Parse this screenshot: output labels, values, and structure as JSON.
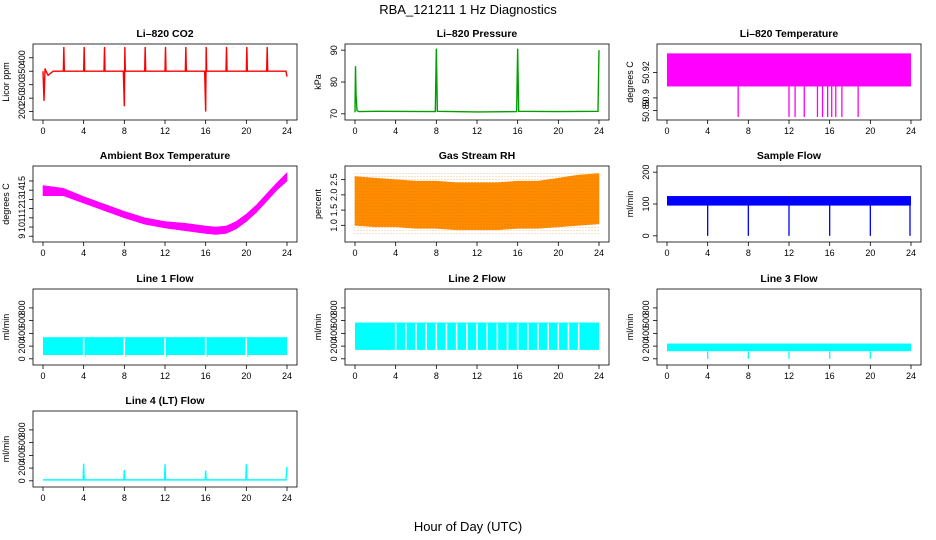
{
  "figure": {
    "title": "RBA_121211  1 Hz Diagnostics",
    "xlabel": "Hour of Day (UTC)"
  },
  "chart_data": [
    {
      "type": "line",
      "title": "Li–820 CO2",
      "ylabel": "Licor ppm",
      "color": "#ff0000",
      "xlim": [
        0,
        24
      ],
      "ylim": [
        180,
        440
      ],
      "xticks": [
        "0",
        "4",
        "8",
        "12",
        "16",
        "20",
        "24"
      ],
      "yticks": [
        "200",
        "250",
        "300",
        "350",
        "400"
      ],
      "series": [
        {
          "x": [
            0,
            0.1,
            0.2,
            0.3,
            0.5,
            1,
            2,
            2.05,
            2.1,
            3,
            4,
            4.05,
            4.1,
            6,
            6.05,
            6.1,
            7.9,
            8,
            8.05,
            8.1,
            10,
            10.05,
            10.1,
            12,
            12.05,
            12.1,
            14,
            14.05,
            14.1,
            15.9,
            16,
            16.05,
            16.1,
            18,
            18.05,
            18.1,
            20,
            20.05,
            20.1,
            22,
            22.05,
            22.1,
            23.9,
            24
          ],
          "y": [
            350,
            240,
            360,
            350,
            335,
            350,
            350,
            440,
            350,
            350,
            350,
            440,
            350,
            350,
            440,
            350,
            350,
            220,
            440,
            350,
            350,
            440,
            350,
            350,
            440,
            350,
            350,
            440,
            350,
            350,
            200,
            440,
            350,
            350,
            440,
            350,
            350,
            440,
            350,
            350,
            440,
            350,
            350,
            330
          ]
        }
      ]
    },
    {
      "type": "line",
      "title": "Li–820 Pressure",
      "ylabel": "kPa",
      "color": "#00a000",
      "xlim": [
        0,
        24
      ],
      "ylim": [
        69,
        91
      ],
      "xticks": [
        "0",
        "4",
        "8",
        "12",
        "16",
        "20",
        "24"
      ],
      "yticks": [
        "70",
        "80",
        "90"
      ],
      "series": [
        {
          "x": [
            0,
            0.05,
            0.1,
            0.2,
            0.4,
            2,
            7.9,
            8,
            8.1,
            12,
            15.9,
            16,
            16.1,
            20,
            23.9,
            24
          ],
          "y": [
            70.5,
            85,
            76,
            71,
            70.7,
            70.8,
            70.7,
            90.5,
            70.8,
            70.6,
            70.7,
            90.5,
            70.8,
            70.7,
            70.8,
            90
          ]
        }
      ]
    },
    {
      "type": "area",
      "title": "Li–820 Temperature",
      "ylabel": "degrees C",
      "color": "#ff00ff",
      "xlim": [
        0,
        24
      ],
      "ylim": [
        50.885,
        50.94
      ],
      "xticks": [
        "0",
        "4",
        "8",
        "12",
        "16",
        "20",
        "24"
      ],
      "yticks": [
        "50.89",
        "50.9",
        "50.92"
      ],
      "series": [
        {
          "band_x": [
            0,
            24
          ],
          "band_low": 50.909,
          "band_high": 50.935,
          "dips_x": [
            7,
            12,
            12.6,
            13.5,
            14.8,
            15.3,
            15.8,
            16.2,
            16.6,
            17.2,
            18.8
          ],
          "dip_low": 50.885
        }
      ]
    },
    {
      "type": "area",
      "title": "Ambient Box Temperature",
      "ylabel": "degrees C",
      "color": "#ff00ff",
      "xlim": [
        0,
        24
      ],
      "ylim": [
        8.7,
        16.3
      ],
      "xticks": [
        "0",
        "4",
        "8",
        "12",
        "16",
        "20",
        "24"
      ],
      "yticks": [
        "9",
        "10",
        "11",
        "12",
        "13",
        "14",
        "15"
      ],
      "series": [
        {
          "x": [
            0,
            2,
            4,
            6,
            8,
            10,
            12,
            14,
            16,
            17,
            18,
            19,
            20,
            21,
            22,
            23,
            24
          ],
          "low": [
            13.4,
            13.4,
            12.6,
            11.8,
            11.0,
            10.3,
            9.9,
            9.6,
            9.3,
            9.2,
            9.3,
            9.8,
            10.6,
            11.6,
            12.8,
            14.0,
            15.0
          ],
          "high": [
            14.5,
            14.2,
            13.3,
            12.5,
            11.7,
            11.0,
            10.6,
            10.4,
            10.1,
            10.0,
            10.1,
            10.6,
            11.4,
            12.4,
            13.6,
            14.8,
            15.9
          ]
        }
      ]
    },
    {
      "type": "area",
      "title": "Gas Stream RH",
      "ylabel": "percent",
      "color": "#ff8c00",
      "xlim": [
        0,
        24
      ],
      "ylim": [
        0.55,
        2.85
      ],
      "xticks": [
        "0",
        "4",
        "8",
        "12",
        "16",
        "20",
        "24"
      ],
      "yticks": [
        "1.0",
        "1.5",
        "2.0",
        "2.5"
      ],
      "series": [
        {
          "x": [
            0,
            2,
            4,
            6,
            8,
            10,
            12,
            14,
            16,
            18,
            20,
            22,
            24
          ],
          "low": [
            1.0,
            0.95,
            0.95,
            0.9,
            0.9,
            0.85,
            0.85,
            0.85,
            0.9,
            0.9,
            0.95,
            1.0,
            1.05
          ],
          "high": [
            2.6,
            2.55,
            2.5,
            2.45,
            2.45,
            2.4,
            2.4,
            2.4,
            2.45,
            2.45,
            2.55,
            2.65,
            2.7
          ]
        }
      ]
    },
    {
      "type": "area",
      "title": "Sample Flow",
      "ylabel": "ml/min",
      "color": "#0000ff",
      "xlim": [
        0,
        24
      ],
      "ylim": [
        -10,
        210
      ],
      "xticks": [
        "0",
        "4",
        "8",
        "12",
        "16",
        "20",
        "24"
      ],
      "yticks": [
        "0",
        "100",
        "200"
      ],
      "series": [
        {
          "band_x": [
            0,
            24
          ],
          "band_low": 95,
          "band_high": 125,
          "dips_x": [
            4,
            8,
            12,
            16,
            20,
            23.9
          ],
          "dip_low": 0
        }
      ]
    },
    {
      "type": "area",
      "title": "Line 1 Flow",
      "ylabel": "ml/min",
      "color": "#00ffff",
      "xlim": [
        0,
        24
      ],
      "ylim": [
        -50,
        1050
      ],
      "xticks": [
        "0",
        "4",
        "8",
        "12",
        "16",
        "20",
        "24"
      ],
      "yticks": [
        "0",
        "200",
        "400",
        "600",
        "800"
      ],
      "series": [
        {
          "band_x": [
            0,
            24
          ],
          "band_low": 60,
          "band_high": 340,
          "gaps_x": [
            4,
            8,
            12,
            16,
            20
          ],
          "gap_low": 30
        }
      ]
    },
    {
      "type": "area",
      "title": "Line 2 Flow",
      "ylabel": "ml/min",
      "color": "#00ffff",
      "xlim": [
        0,
        24
      ],
      "ylim": [
        -50,
        1050
      ],
      "xticks": [
        "0",
        "4",
        "8",
        "12",
        "16",
        "20",
        "24"
      ],
      "yticks": [
        "0",
        "200",
        "400",
        "600",
        "800"
      ],
      "series": [
        {
          "band_x": [
            0,
            24
          ],
          "band_low": 140,
          "band_high": 570,
          "gaps_x": [
            4,
            5,
            6,
            7,
            8,
            9,
            10,
            11,
            12,
            13,
            14,
            15,
            16,
            17,
            18,
            19,
            20,
            21,
            22
          ],
          "gap_low": 140
        }
      ]
    },
    {
      "type": "area",
      "title": "Line 3 Flow",
      "ylabel": "ml/min",
      "color": "#00ffff",
      "xlim": [
        0,
        24
      ],
      "ylim": [
        -50,
        1050
      ],
      "xticks": [
        "0",
        "4",
        "8",
        "12",
        "16",
        "20",
        "24"
      ],
      "yticks": [
        "0",
        "200",
        "400",
        "600",
        "800"
      ],
      "series": [
        {
          "band_x": [
            0,
            24
          ],
          "band_low": 120,
          "band_high": 240,
          "dips_x": [
            4,
            8,
            12,
            16,
            20
          ],
          "dip_low": 0
        }
      ]
    },
    {
      "type": "line",
      "title": "Line 4 (LT) Flow",
      "ylabel": "ml/min",
      "color": "#00ffff",
      "xlim": [
        0,
        24
      ],
      "ylim": [
        -50,
        1050
      ],
      "xticks": [
        "0",
        "4",
        "8",
        "12",
        "16",
        "20",
        "24"
      ],
      "yticks": [
        "0",
        "200",
        "400",
        "600",
        "800"
      ],
      "series": [
        {
          "x": [
            0,
            3.95,
            4,
            4.05,
            7.95,
            8,
            8.05,
            11.95,
            12,
            12.05,
            15.95,
            16,
            16.05,
            19.95,
            20,
            20.05,
            23.9,
            24
          ],
          "y": [
            15,
            15,
            270,
            15,
            15,
            170,
            15,
            15,
            260,
            15,
            15,
            160,
            15,
            15,
            260,
            15,
            15,
            220
          ]
        }
      ]
    }
  ]
}
